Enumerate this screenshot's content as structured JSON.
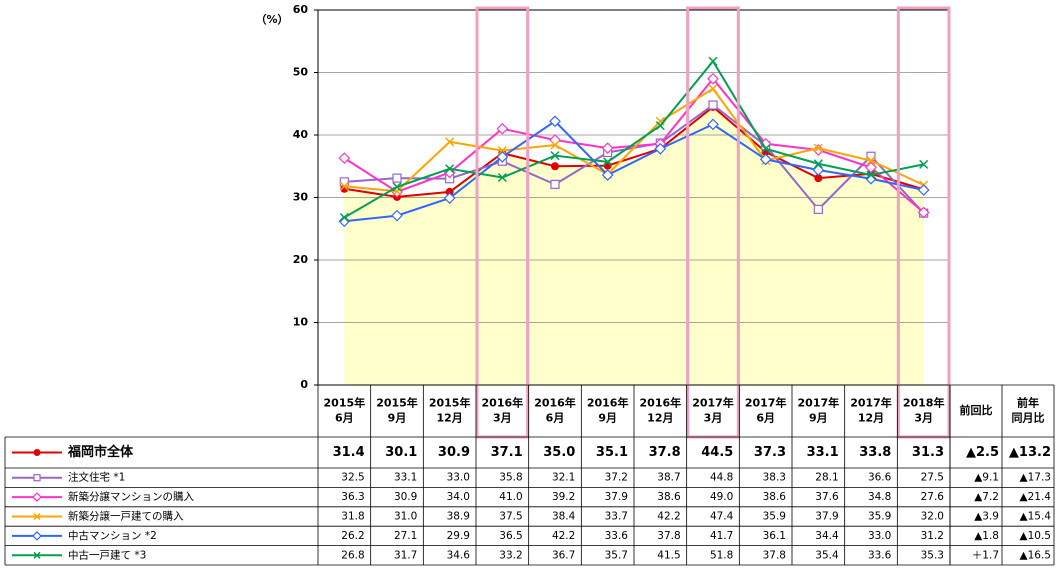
{
  "chart_data": {
    "type": "line",
    "y_label": "（%）",
    "categories": [
      "2015年\n6月",
      "2015年\n9月",
      "2015年\n12月",
      "2016年\n3月",
      "2016年\n6月",
      "2016年\n9月",
      "2016年\n12月",
      "2017年\n3月",
      "2017年\n6月",
      "2017年\n9月",
      "2017年\n12月",
      "2018年\n3月"
    ],
    "ylim": [
      0,
      60
    ],
    "yticks": [
      0,
      10,
      20,
      30,
      40,
      50,
      60
    ],
    "series": [
      {
        "name": "福岡市全体",
        "color": "#e00000",
        "marker": "circle",
        "area_color": "#ffffcc",
        "values": [
          31.4,
          30.1,
          30.9,
          37.1,
          35.0,
          35.1,
          37.8,
          44.5,
          37.3,
          33.1,
          33.8,
          31.3
        ],
        "value_labels": [
          "31.4",
          "30.1",
          "30.9",
          "37.1",
          "35.0",
          "35.1",
          "37.8",
          "44.5",
          "37.3",
          "33.1",
          "33.8",
          "31.3"
        ]
      },
      {
        "name": "注文住宅 *1",
        "color": "#9966cc",
        "marker": "square",
        "values": [
          32.5,
          33.1,
          33.0,
          35.8,
          32.1,
          37.2,
          38.7,
          44.8,
          38.3,
          28.1,
          36.6,
          27.5
        ],
        "value_labels": [
          "32.5",
          "33.1",
          "33.0",
          "35.8",
          "32.1",
          "37.2",
          "38.7",
          "44.8",
          "38.3",
          "28.1",
          "36.6",
          "27.5"
        ]
      },
      {
        "name": "新築分譲マンションの購入",
        "color": "#ff33cc",
        "marker": "diamond",
        "values": [
          36.3,
          30.9,
          34.0,
          41.0,
          39.2,
          37.9,
          38.6,
          49.0,
          38.6,
          37.6,
          34.8,
          27.6
        ],
        "value_labels": [
          "36.3",
          "30.9",
          "34.0",
          "41.0",
          "39.2",
          "37.9",
          "38.6",
          "49.0",
          "38.6",
          "37.6",
          "34.8",
          "27.6"
        ]
      },
      {
        "name": "新築分譲一戸建ての購入",
        "color": "#ffa500",
        "marker": "x",
        "values": [
          31.8,
          31.0,
          38.9,
          37.5,
          38.4,
          33.7,
          42.2,
          47.4,
          35.9,
          37.9,
          35.9,
          32.0
        ],
        "value_labels": [
          "31.8",
          "31.0",
          "38.9",
          "37.5",
          "38.4",
          "33.7",
          "42.2",
          "47.4",
          "35.9",
          "37.9",
          "35.9",
          "32.0"
        ]
      },
      {
        "name": "中古マンション *2",
        "color": "#3366ff",
        "marker": "diamond",
        "values": [
          26.2,
          27.1,
          29.9,
          36.5,
          42.2,
          33.6,
          37.8,
          41.7,
          36.1,
          34.4,
          33.0,
          31.2
        ],
        "value_labels": [
          "26.2",
          "27.1",
          "29.9",
          "36.5",
          "42.2",
          "33.6",
          "37.8",
          "41.7",
          "36.1",
          "34.4",
          "33.0",
          "31.2"
        ]
      },
      {
        "name": "中古一戸建て *3",
        "color": "#00a050",
        "marker": "x",
        "values": [
          26.8,
          31.7,
          34.6,
          33.2,
          36.7,
          35.7,
          41.5,
          51.8,
          37.8,
          35.4,
          33.6,
          35.3
        ],
        "value_labels": [
          "26.8",
          "31.7",
          "34.6",
          "33.2",
          "36.7",
          "35.7",
          "41.5",
          "51.8",
          "37.8",
          "35.4",
          "33.6",
          "35.3"
        ]
      }
    ],
    "extra_headers": [
      "前回比",
      "前年\n同月比"
    ],
    "extra_values": [
      [
        "▲2.5",
        "▲13.2"
      ],
      [
        "▲9.1",
        "▲17.3"
      ],
      [
        "▲7.2",
        "▲21.4"
      ],
      [
        "▲3.9",
        "▲15.4"
      ],
      [
        "▲1.8",
        "▲10.5"
      ],
      [
        "＋1.7",
        "▲16.5"
      ]
    ]
  }
}
